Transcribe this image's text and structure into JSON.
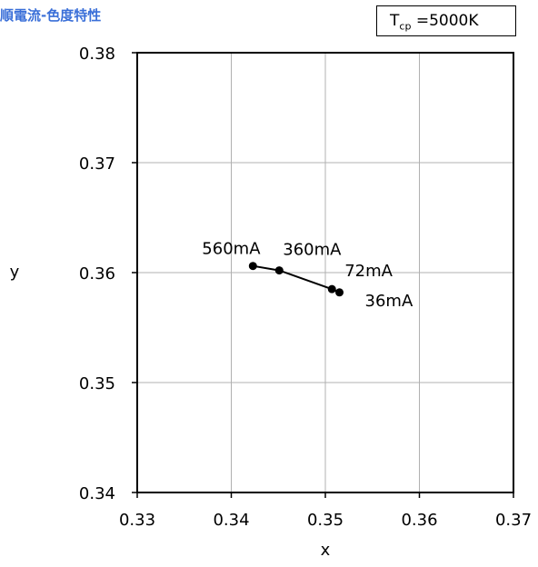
{
  "heading": "順電流-色度特性",
  "tcp_label": {
    "prefix": "T",
    "sub": "cp",
    "value": "=5000K"
  },
  "chart_data": {
    "type": "line",
    "title": "",
    "xlabel": "x",
    "ylabel": "y",
    "xlim": [
      0.33,
      0.37
    ],
    "ylim": [
      0.34,
      0.38
    ],
    "xticks": [
      "0.33",
      "0.34",
      "0.35",
      "0.36",
      "0.37"
    ],
    "yticks": [
      "0.34",
      "0.35",
      "0.36",
      "0.37",
      "0.38"
    ],
    "grid": true,
    "series": [
      {
        "points": [
          {
            "label": "560mA",
            "x": 0.3423,
            "y": 0.3606
          },
          {
            "label": "360mA",
            "x": 0.3451,
            "y": 0.3602
          },
          {
            "label": "72mA",
            "x": 0.3507,
            "y": 0.3585
          },
          {
            "label": "36mA",
            "x": 0.3515,
            "y": 0.3582
          }
        ]
      }
    ]
  },
  "colors": {
    "heading": "#3a6fd8",
    "line": "#000000",
    "grid": "#b0b0b0"
  }
}
